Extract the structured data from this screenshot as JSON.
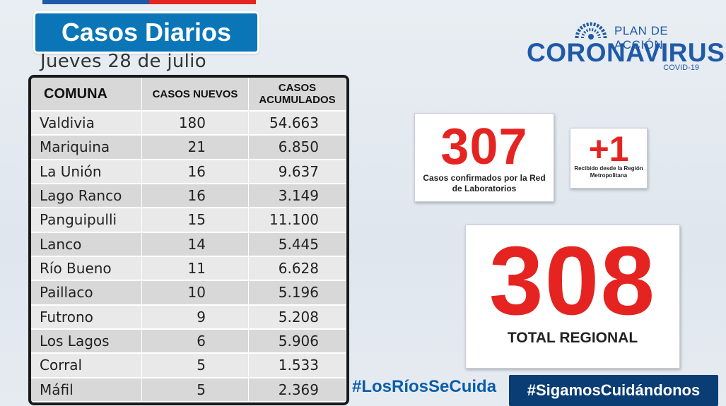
{
  "header": {
    "title": "Casos Diarios",
    "date": "Jueves 28 de julio"
  },
  "brand": {
    "plan": "PLAN DE ACCIÓN",
    "name": "CORONAVIRUS",
    "sub": "COVID-19",
    "accent": "#1f5aa8"
  },
  "table": {
    "headers": [
      "COMUNA",
      "CASOS NUEVOS",
      "CASOS ACUMULADOS"
    ],
    "rows": [
      {
        "comuna": "Valdivia",
        "nuevos": "180",
        "acumulados": "54.663"
      },
      {
        "comuna": "Mariquina",
        "nuevos": "21",
        "acumulados": "6.850"
      },
      {
        "comuna": "La Unión",
        "nuevos": "16",
        "acumulados": "9.637"
      },
      {
        "comuna": "Lago Ranco",
        "nuevos": "16",
        "acumulados": "3.149"
      },
      {
        "comuna": "Panguipulli",
        "nuevos": "15",
        "acumulados": "11.100"
      },
      {
        "comuna": "Lanco",
        "nuevos": "14",
        "acumulados": "5.445"
      },
      {
        "comuna": "Río Bueno",
        "nuevos": "11",
        "acumulados": "6.628"
      },
      {
        "comuna": "Paillaco",
        "nuevos": "10",
        "acumulados": "5.196"
      },
      {
        "comuna": "Futrono",
        "nuevos": "9",
        "acumulados": "5.208"
      },
      {
        "comuna": "Los Lagos",
        "nuevos": "6",
        "acumulados": "5.906"
      },
      {
        "comuna": "Corral",
        "nuevos": "5",
        "acumulados": "1.533"
      },
      {
        "comuna": "Máfil",
        "nuevos": "5",
        "acumulados": "2.369"
      }
    ]
  },
  "stats": {
    "confirmed": {
      "value": "307",
      "label": "Casos confirmados por la Red de Laboratorios"
    },
    "received": {
      "value": "+1",
      "label": "Recibido desde la Región Metropolitana"
    },
    "total": {
      "value": "308",
      "label": "TOTAL REGIONAL"
    }
  },
  "hashtags": {
    "left": "#LosRíosSeCuida",
    "right": "#SigamosCuidándonos"
  },
  "colors": {
    "highlight": "#e52421",
    "primary": "#0a76b8",
    "dark": "#0a3d73"
  }
}
